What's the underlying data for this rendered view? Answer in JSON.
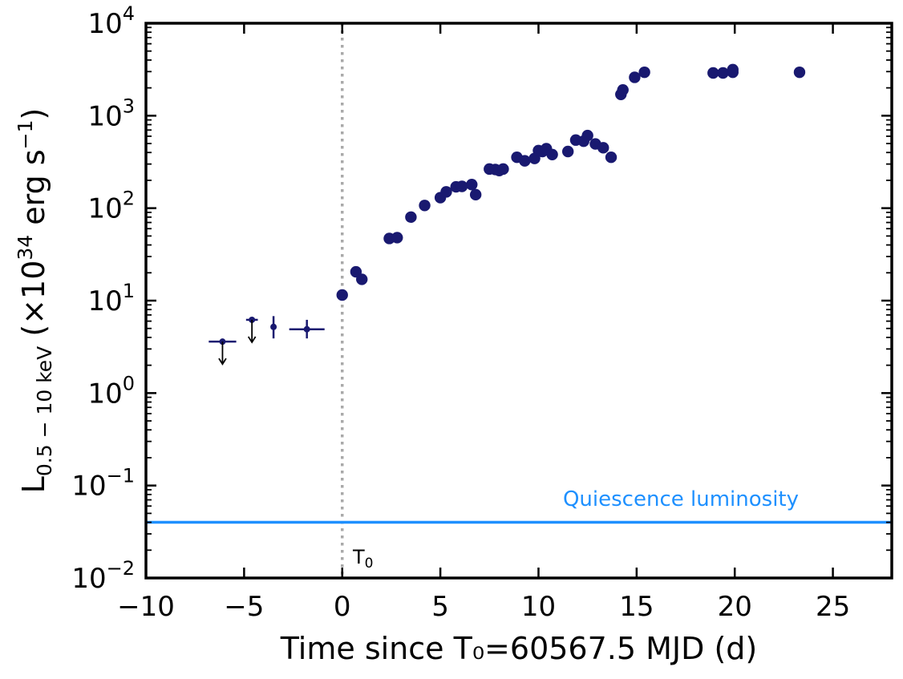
{
  "chart_data": {
    "type": "scatter",
    "y_scale": "log",
    "xlabel": "Time since T₀=60567.5 MJD (d)",
    "ylabel": "L_{0.5 − 10 keV} (×10^34 erg s^−1)",
    "xlim": [
      -10,
      28
    ],
    "ylim": [
      0.01,
      10000
    ],
    "x_ticks": [
      -10,
      -5,
      0,
      5,
      10,
      15,
      20,
      25
    ],
    "x_tick_labels": [
      "−10",
      "−5",
      "0",
      "5",
      "10",
      "15",
      "20",
      "25"
    ],
    "y_ticks": [
      0.01,
      0.1,
      1,
      10,
      100,
      1000,
      10000
    ],
    "y_tick_exponents": [
      "−2",
      "−1",
      "0",
      "1",
      "2",
      "3",
      "4"
    ],
    "colors": {
      "points": "#191970",
      "quiescence": "#1e90ff",
      "t0_line": "#a9a9a9",
      "arrow": "#000000"
    },
    "t0_line": {
      "x": 0,
      "label": "T",
      "label_sub": "0"
    },
    "quiescence": {
      "y": 0.04,
      "label": "Quiescence luminosity"
    },
    "upper_limits": [
      {
        "x": -6.1,
        "y": 3.6,
        "xerr": 0.7
      },
      {
        "x": -4.6,
        "y": 6.2,
        "xerr": 0.3
      }
    ],
    "error_points": [
      {
        "x": -3.5,
        "y": 5.2,
        "ylo": 3.9,
        "yhi": 6.8
      },
      {
        "x": -1.8,
        "y": 4.9,
        "xerr": 0.9,
        "ylo": 3.9,
        "yhi": 6.2
      }
    ],
    "detections": [
      {
        "x": 0.0,
        "y": 11.5
      },
      {
        "x": 0.7,
        "y": 20.5
      },
      {
        "x": 1.0,
        "y": 17.0
      },
      {
        "x": 2.4,
        "y": 47.0
      },
      {
        "x": 2.8,
        "y": 48.0
      },
      {
        "x": 3.5,
        "y": 80.0
      },
      {
        "x": 4.2,
        "y": 107.0
      },
      {
        "x": 5.0,
        "y": 130.0
      },
      {
        "x": 5.3,
        "y": 150.0
      },
      {
        "x": 5.8,
        "y": 170.0
      },
      {
        "x": 6.1,
        "y": 172.0
      },
      {
        "x": 6.6,
        "y": 180.0
      },
      {
        "x": 6.8,
        "y": 140.0
      },
      {
        "x": 7.5,
        "y": 265.0
      },
      {
        "x": 7.8,
        "y": 262.0
      },
      {
        "x": 8.0,
        "y": 255.0
      },
      {
        "x": 8.2,
        "y": 265.0
      },
      {
        "x": 8.9,
        "y": 355.0
      },
      {
        "x": 9.3,
        "y": 325.0
      },
      {
        "x": 9.8,
        "y": 345.0
      },
      {
        "x": 10.0,
        "y": 420.0
      },
      {
        "x": 10.2,
        "y": 410.0
      },
      {
        "x": 10.4,
        "y": 440.0
      },
      {
        "x": 10.7,
        "y": 380.0
      },
      {
        "x": 11.5,
        "y": 410.0
      },
      {
        "x": 11.9,
        "y": 545.0
      },
      {
        "x": 12.3,
        "y": 530.0
      },
      {
        "x": 12.5,
        "y": 610.0
      },
      {
        "x": 12.9,
        "y": 495.0
      },
      {
        "x": 13.3,
        "y": 450.0
      },
      {
        "x": 13.7,
        "y": 355.0
      },
      {
        "x": 14.2,
        "y": 1700.0
      },
      {
        "x": 14.3,
        "y": 1900.0
      },
      {
        "x": 14.9,
        "y": 2600.0
      },
      {
        "x": 15.4,
        "y": 2950.0
      },
      {
        "x": 18.9,
        "y": 2900.0
      },
      {
        "x": 19.4,
        "y": 2900.0
      },
      {
        "x": 19.9,
        "y": 2950.0
      },
      {
        "x": 19.9,
        "y": 3150.0
      },
      {
        "x": 23.3,
        "y": 2950.0
      }
    ]
  }
}
